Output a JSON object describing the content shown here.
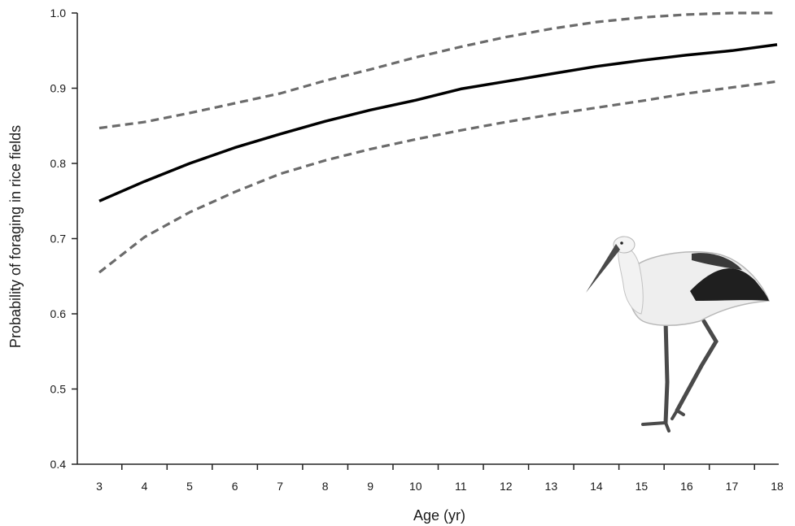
{
  "chart_data": {
    "type": "line",
    "xlabel": "Age (yr)",
    "ylabel": "Probability of foraging in rice fields",
    "xlim": [
      3,
      18
    ],
    "ylim": [
      0.4,
      1.0
    ],
    "x_ticks": [
      "3",
      "4",
      "5",
      "6",
      "7",
      "8",
      "9",
      "10",
      "11",
      "12",
      "13",
      "14",
      "15",
      "16",
      "17",
      "18"
    ],
    "y_ticks": [
      "0.4",
      "0.5",
      "0.6",
      "0.7",
      "0.8",
      "0.9",
      "1.0"
    ],
    "x": [
      3,
      4,
      5,
      6,
      7,
      8,
      9,
      10,
      11,
      12,
      13,
      14,
      15,
      16,
      17,
      18
    ],
    "series": [
      {
        "role": "estimate",
        "color": "#000000",
        "style": "solid",
        "values": [
          0.75,
          0.776,
          0.8,
          0.821,
          0.839,
          0.856,
          0.871,
          0.884,
          0.899,
          0.909,
          0.919,
          0.929,
          0.937,
          0.944,
          0.95,
          0.958
        ]
      },
      {
        "role": "upper-ci",
        "color": "#6b6b6b",
        "style": "dashed",
        "values": [
          0.847,
          0.855,
          0.867,
          0.88,
          0.893,
          0.91,
          0.925,
          0.941,
          0.955,
          0.968,
          0.979,
          0.988,
          0.994,
          0.998,
          1.0,
          1.0
        ]
      },
      {
        "role": "lower-ci",
        "color": "#6b6b6b",
        "style": "dashed",
        "values": [
          0.655,
          0.702,
          0.735,
          0.762,
          0.786,
          0.804,
          0.819,
          0.832,
          0.844,
          0.855,
          0.865,
          0.874,
          0.883,
          0.893,
          0.901,
          0.909
        ]
      }
    ],
    "grid": false,
    "illustration": "white-stork"
  }
}
